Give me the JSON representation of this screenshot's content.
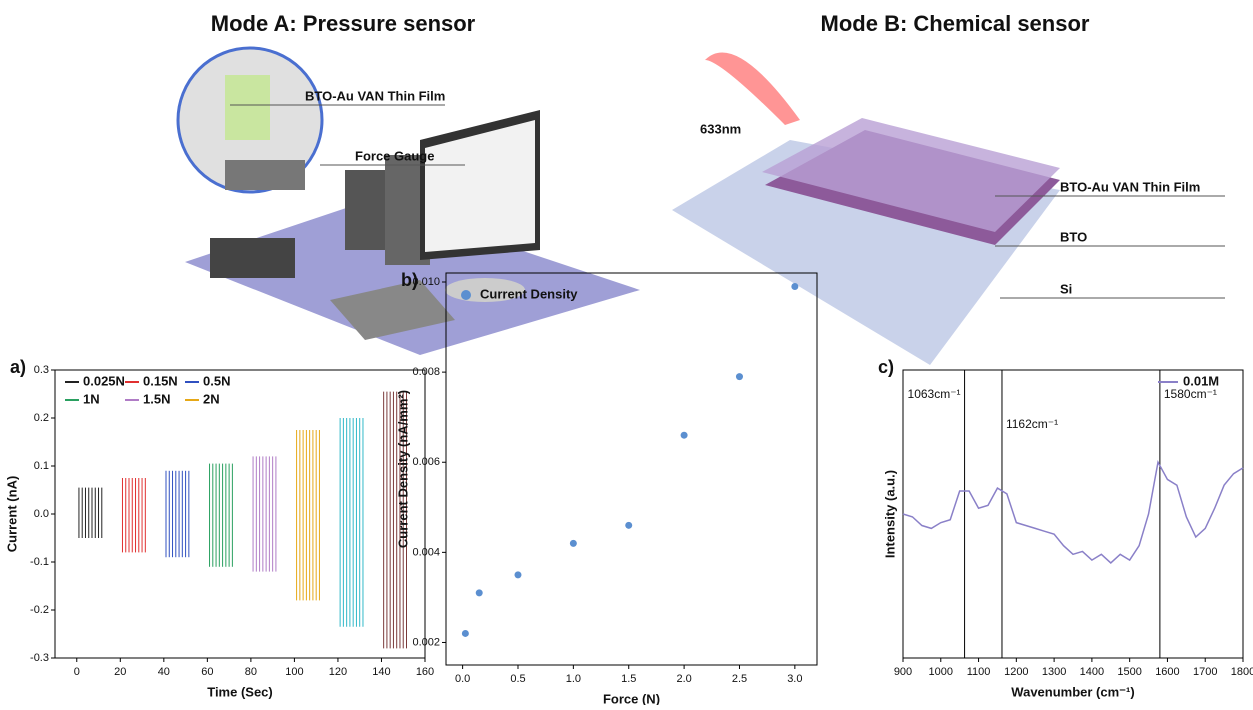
{
  "illustration": {
    "mode_a": {
      "title": "Mode A: Pressure sensor",
      "film": "BTO-Au VAN Thin Film",
      "gauge": "Force Gauge"
    },
    "mode_b": {
      "title": "Mode B: Chemical sensor",
      "laser": "633nm",
      "film": "BTO-Au VAN Thin Film",
      "bto": "BTO",
      "si": "Si"
    }
  },
  "chart_data": [
    {
      "type": "spike",
      "label": "a)",
      "x_label": "Time (Sec)",
      "y_label": "Current (nA)",
      "xlim": [
        -10,
        160
      ],
      "xticks": [
        0,
        20,
        40,
        60,
        80,
        100,
        120,
        140,
        160
      ],
      "ylim": [
        -0.3,
        0.3
      ],
      "yticks": [
        -0.3,
        -0.2,
        -0.1,
        {
          "value": 0,
          "label": "0.0"
        },
        0.1,
        0.2,
        0.3
      ],
      "series": [
        {
          "name": "0.025N",
          "color": "#222222",
          "x": [
            1,
            2.5,
            4,
            5.5,
            7,
            8.5,
            10,
            11.5
          ],
          "high": 0.055,
          "low": -0.05
        },
        {
          "name": "0.15N",
          "color": "#e03030",
          "x": [
            21,
            22.5,
            24,
            25.5,
            27,
            28.5,
            30,
            31.5
          ],
          "high": 0.075,
          "low": -0.08
        },
        {
          "name": "0.5N",
          "color": "#3050c0",
          "x": [
            41,
            42.5,
            44,
            45.5,
            47,
            48.5,
            50,
            51.5
          ],
          "high": 0.09,
          "low": -0.09
        },
        {
          "name": "1N",
          "color": "#2aa060",
          "x": [
            61,
            62.5,
            64,
            65.5,
            67,
            68.5,
            70,
            71.5
          ],
          "high": 0.105,
          "low": -0.11
        },
        {
          "name": "1.5N",
          "color": "#b07cc6",
          "x": [
            81,
            82.5,
            84,
            85.5,
            87,
            88.5,
            90,
            91.5
          ],
          "high": 0.12,
          "low": -0.12
        },
        {
          "name": "2N",
          "color": "#e6a817",
          "x": [
            101,
            102.5,
            104,
            105.5,
            107,
            108.5,
            110,
            111.5
          ],
          "high": 0.175,
          "low": -0.18
        },
        {
          "name": null,
          "color": "#30b8c8",
          "x": [
            121,
            122.5,
            124,
            125.5,
            127,
            128.5,
            130,
            131.5
          ],
          "high": 0.2,
          "low": -0.235
        },
        {
          "name": null,
          "color": "#7a3a3a",
          "x": [
            141,
            142.5,
            144,
            145.5,
            147,
            148.5,
            150,
            151.5
          ],
          "high": 0.255,
          "low": -0.28
        }
      ]
    },
    {
      "type": "scatter",
      "label": "b)",
      "x_label": "Force (N)",
      "y_label": "Current Density (nA/mm²)",
      "xlim": [
        -0.15,
        3.2
      ],
      "xticks": [
        {
          "value": 0,
          "label": "0.0"
        },
        0.5,
        {
          "value": 1,
          "label": "1.0"
        },
        1.5,
        {
          "value": 2,
          "label": "2.0"
        },
        2.5,
        {
          "value": 3,
          "label": "3.0"
        }
      ],
      "ylim": [
        0.0015,
        0.0102
      ],
      "yticks": [
        0.002,
        0.004,
        0.006,
        0.008,
        {
          "value": 0.01,
          "label": "0.010"
        }
      ],
      "series": [
        {
          "name": "Current Density",
          "color": "#5b8fd0",
          "x": [
            0.025,
            0.15,
            0.5,
            1,
            1.5,
            2,
            2.5,
            3
          ],
          "values": [
            0.0022,
            0.0031,
            0.0035,
            0.0042,
            0.0046,
            0.0066,
            0.0079,
            0.0099
          ]
        }
      ]
    },
    {
      "type": "line",
      "label": "c)",
      "x_label": "Wavenumber (cm⁻¹)",
      "y_label": "Intensity (a.u.)",
      "xlim": [
        900,
        1800
      ],
      "xticks": [
        900,
        1000,
        1100,
        1200,
        1300,
        1400,
        1500,
        1600,
        1700,
        1800
      ],
      "ylim": [
        0,
        1
      ],
      "markers": [
        {
          "value": 1063,
          "label": "1063cm⁻¹"
        },
        {
          "value": 1162,
          "label": "1162cm⁻¹"
        },
        {
          "value": 1580,
          "label": "1580cm⁻¹"
        }
      ],
      "series": [
        {
          "name": "0.01M",
          "color": "#8a80c8",
          "x": [
            900,
            925,
            950,
            975,
            1000,
            1025,
            1050,
            1075,
            1100,
            1125,
            1150,
            1175,
            1200,
            1225,
            1250,
            1275,
            1300,
            1325,
            1350,
            1375,
            1400,
            1425,
            1450,
            1475,
            1500,
            1525,
            1550,
            1575,
            1600,
            1625,
            1650,
            1675,
            1700,
            1725,
            1750,
            1775,
            1800
          ],
          "values": [
            0.5,
            0.49,
            0.46,
            0.45,
            0.47,
            0.48,
            0.58,
            0.58,
            0.52,
            0.53,
            0.59,
            0.57,
            0.47,
            0.46,
            0.45,
            0.44,
            0.43,
            0.39,
            0.36,
            0.37,
            0.34,
            0.36,
            0.33,
            0.36,
            0.34,
            0.39,
            0.5,
            0.68,
            0.62,
            0.6,
            0.49,
            0.42,
            0.45,
            0.52,
            0.6,
            0.64,
            0.66
          ]
        }
      ]
    }
  ]
}
